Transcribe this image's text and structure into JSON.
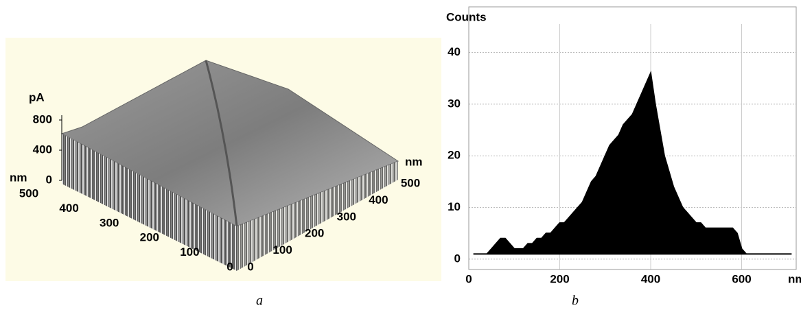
{
  "chart_data": [
    {
      "type": "surface",
      "caption": "a",
      "z_label": "pA",
      "zlim": [
        0,
        800
      ],
      "zticks": [
        0,
        400,
        800
      ],
      "x_label": "nm",
      "xlim": [
        0,
        500
      ],
      "xticks": [
        0,
        100,
        200,
        300,
        400,
        500
      ],
      "y_label": "nm",
      "ylim": [
        0,
        500
      ],
      "yticks": [
        0,
        100,
        200,
        300,
        400,
        500
      ]
    },
    {
      "type": "area",
      "caption": "b",
      "y_label": "Counts",
      "x_label": "nm",
      "color": "#000000",
      "grid": true,
      "xlim": [
        0,
        720
      ],
      "xticks": [
        0,
        200,
        400,
        600
      ],
      "ylim": [
        -2,
        45.5
      ],
      "yticks": [
        0,
        10,
        20,
        30,
        40
      ],
      "x": [
        10,
        20,
        30,
        40,
        50,
        60,
        70,
        80,
        90,
        100,
        110,
        120,
        130,
        140,
        150,
        160,
        170,
        180,
        190,
        200,
        210,
        220,
        230,
        240,
        250,
        260,
        270,
        280,
        290,
        300,
        310,
        320,
        330,
        340,
        350,
        360,
        370,
        380,
        390,
        400,
        410,
        420,
        430,
        440,
        450,
        460,
        470,
        480,
        490,
        500,
        510,
        520,
        530,
        540,
        550,
        560,
        570,
        580,
        590,
        600,
        610,
        620,
        630,
        640,
        650,
        660,
        670,
        680,
        690,
        700,
        710
      ],
      "values": [
        1,
        1,
        1,
        1,
        2,
        3,
        4,
        4,
        3,
        2,
        2,
        2,
        3,
        3,
        4,
        4,
        5,
        5,
        6,
        7,
        7,
        8,
        9,
        10,
        11,
        13,
        15,
        16,
        18,
        20,
        22,
        23,
        24,
        26,
        27,
        28,
        30,
        32,
        34,
        36,
        30,
        25,
        20,
        17,
        14,
        12,
        10,
        9,
        8,
        7,
        7,
        6,
        6,
        6,
        6,
        6,
        6,
        6,
        5,
        2,
        1,
        1,
        1,
        1,
        1,
        1,
        1,
        1,
        1,
        1,
        1
      ]
    }
  ]
}
